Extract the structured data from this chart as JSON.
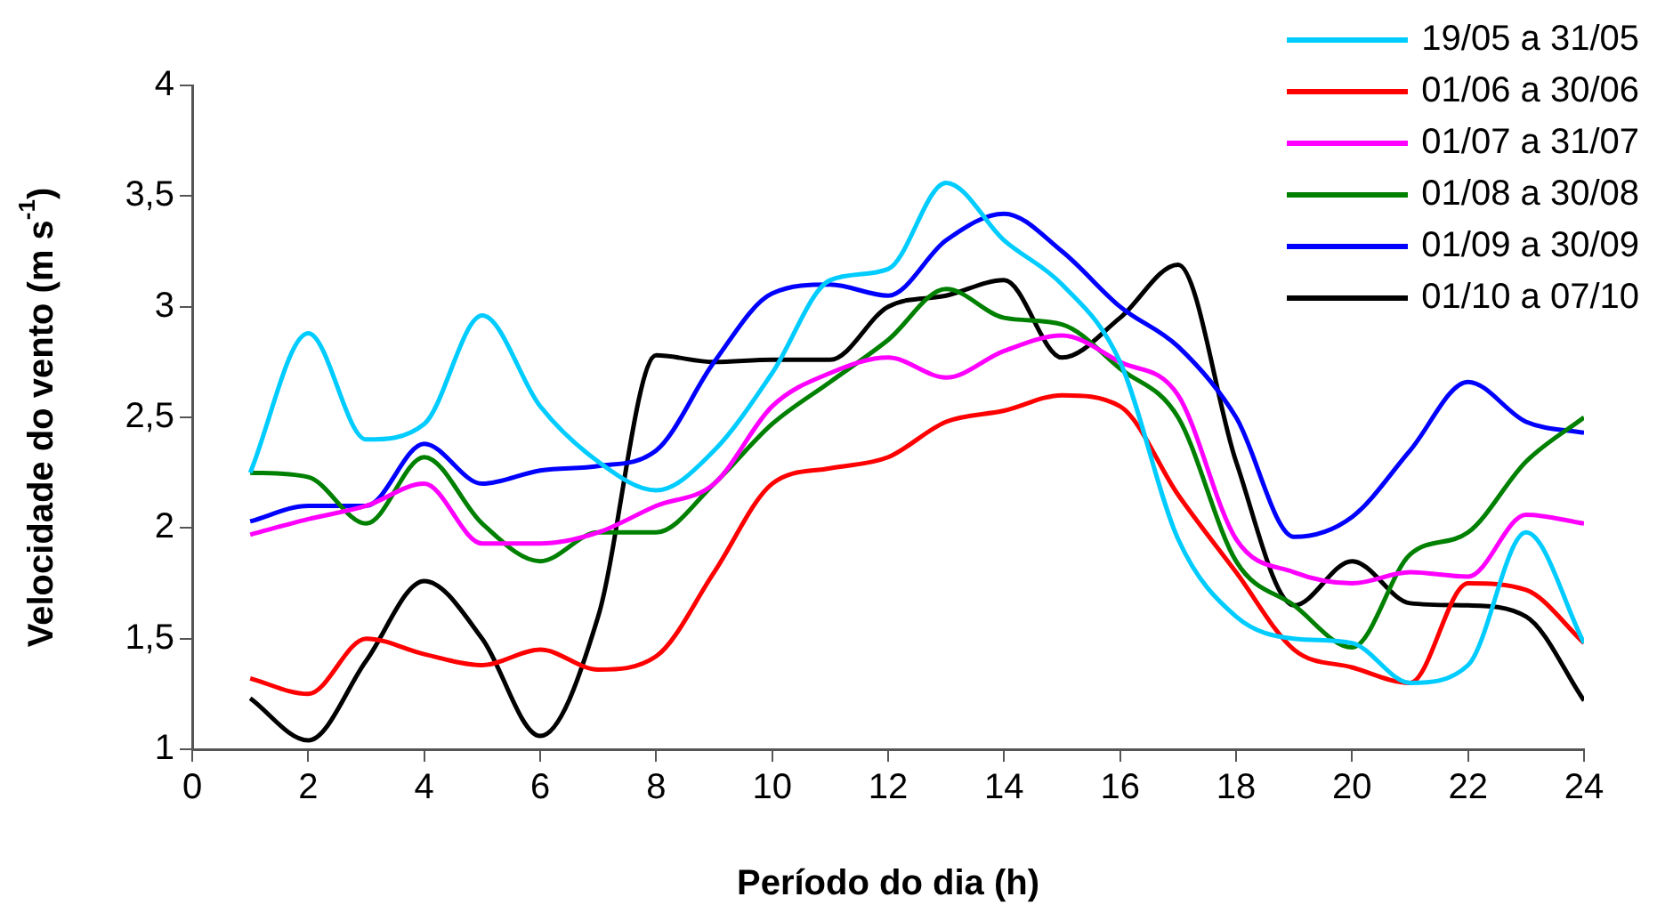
{
  "chart_data": {
    "type": "line",
    "xlabel": "Período do dia (h)",
    "ylabel": "Velocidade do vento (m s$^{-1}$)",
    "x": [
      1,
      2,
      3,
      4,
      5,
      6,
      7,
      8,
      9,
      10,
      11,
      12,
      13,
      14,
      15,
      16,
      17,
      18,
      19,
      20,
      21,
      22,
      23,
      24
    ],
    "xlim": [
      0,
      24
    ],
    "xticks": [
      0,
      2,
      4,
      6,
      8,
      10,
      12,
      14,
      16,
      18,
      20,
      22,
      24
    ],
    "ylim": [
      1,
      4
    ],
    "yticks": [
      {
        "value": 1,
        "label": "1"
      },
      {
        "value": 1.5,
        "label": "1,5"
      },
      {
        "value": 2,
        "label": "2"
      },
      {
        "value": 2.5,
        "label": "2,5"
      },
      {
        "value": 3,
        "label": "3"
      },
      {
        "value": 3.5,
        "label": "3,5"
      },
      {
        "value": 4,
        "label": "4"
      }
    ],
    "grid": false,
    "legend": "top right",
    "marker": "none",
    "line_style": "solid",
    "series": [
      {
        "name": "19/05 a 31/05",
        "color": "#00ccff",
        "values": [
          2.25,
          2.88,
          2.4,
          2.47,
          2.96,
          2.55,
          2.3,
          2.17,
          2.35,
          2.7,
          3.12,
          3.17,
          3.56,
          3.3,
          3.1,
          2.75,
          1.95,
          1.6,
          1.5,
          1.48,
          1.3,
          1.38,
          1.98,
          1.48
        ]
      },
      {
        "name": "01/06 a 30/06",
        "color": "#ff0000",
        "values": [
          1.32,
          1.25,
          1.5,
          1.43,
          1.38,
          1.45,
          1.36,
          1.42,
          1.8,
          2.2,
          2.27,
          2.32,
          2.48,
          2.53,
          2.6,
          2.55,
          2.15,
          1.8,
          1.45,
          1.37,
          1.3,
          1.75,
          1.72,
          1.48
        ]
      },
      {
        "name": "01/07 a 31/07",
        "color": "#ff00ff",
        "values": [
          1.97,
          2.04,
          2.1,
          2.2,
          1.93,
          1.93,
          1.98,
          2.1,
          2.2,
          2.55,
          2.7,
          2.77,
          2.68,
          2.8,
          2.87,
          2.75,
          2.6,
          1.95,
          1.8,
          1.75,
          1.8,
          1.78,
          2.06,
          2.02
        ]
      },
      {
        "name": "01/08 a 30/08",
        "color": "#008000",
        "values": [
          2.25,
          2.23,
          2.02,
          2.32,
          2.02,
          1.85,
          1.98,
          1.98,
          2.2,
          2.47,
          2.66,
          2.85,
          3.08,
          2.95,
          2.92,
          2.72,
          2.5,
          1.85,
          1.65,
          1.46,
          1.88,
          1.98,
          2.3,
          2.5
        ]
      },
      {
        "name": "01/09 a 30/09",
        "color": "#0000ff",
        "values": [
          2.03,
          2.1,
          2.1,
          2.38,
          2.2,
          2.26,
          2.28,
          2.35,
          2.75,
          3.06,
          3.1,
          3.05,
          3.3,
          3.42,
          3.25,
          3.0,
          2.82,
          2.5,
          1.96,
          2.05,
          2.35,
          2.66,
          2.48,
          2.43
        ]
      },
      {
        "name": "01/10 a 07/10",
        "color": "#000000",
        "values": [
          1.23,
          1.04,
          1.4,
          1.76,
          1.5,
          1.06,
          1.6,
          2.78,
          2.75,
          2.76,
          2.76,
          3.0,
          3.05,
          3.12,
          2.77,
          2.95,
          3.19,
          2.3,
          1.65,
          1.85,
          1.66,
          1.65,
          1.6,
          1.22
        ]
      }
    ]
  }
}
